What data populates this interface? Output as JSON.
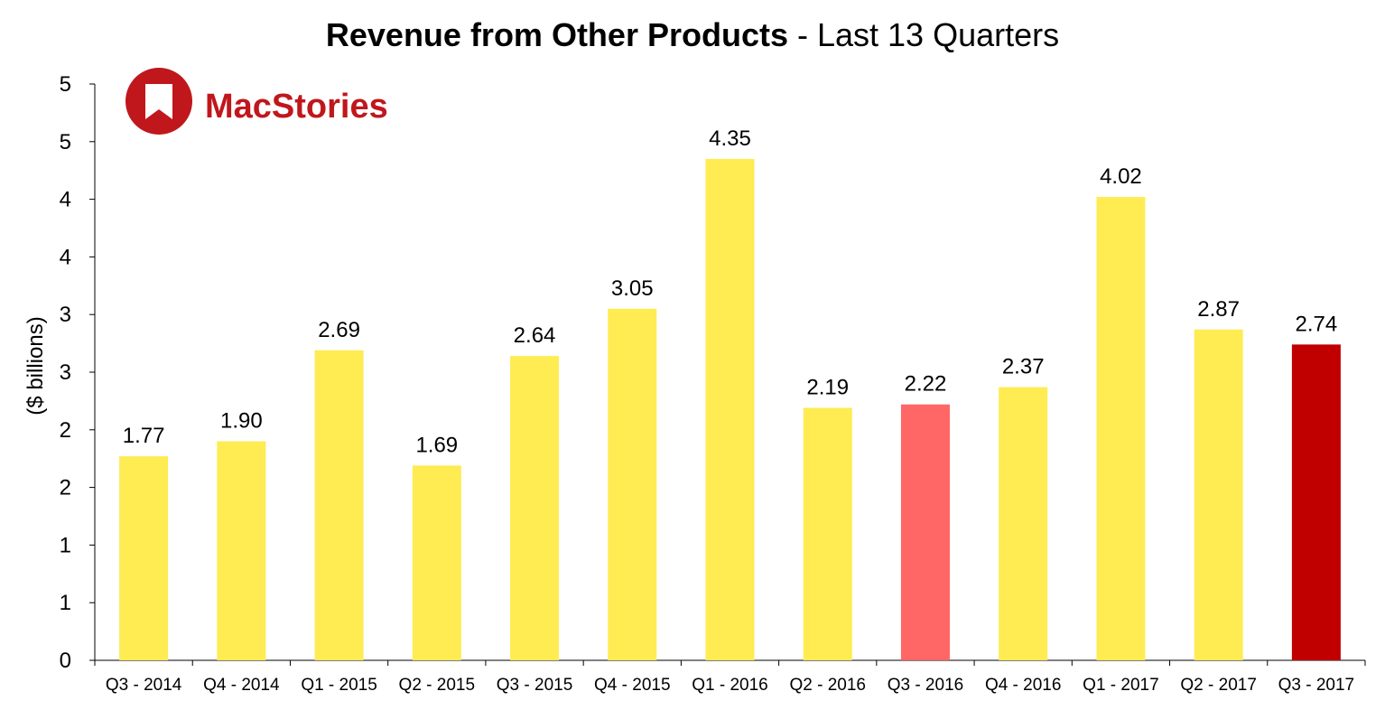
{
  "chart_data": {
    "type": "bar",
    "title_bold": "Revenue from Other Products",
    "title_rest": " - Last 13 Quarters",
    "ylabel": "($ billions)",
    "xlabel": "",
    "ylim": [
      0,
      5
    ],
    "yticks": [
      0,
      0.5,
      1,
      1.5,
      2,
      2.5,
      3,
      3.5,
      4,
      4.5,
      5
    ],
    "ytick_labels": [
      "0",
      "1",
      "1",
      "2",
      "2",
      "3",
      "3",
      "4",
      "4",
      "5",
      "5"
    ],
    "categories": [
      "Q3 - 2014",
      "Q4 - 2014",
      "Q1 - 2015",
      "Q2 - 2015",
      "Q3 - 2015",
      "Q4 - 2015",
      "Q1 - 2016",
      "Q2 - 2016",
      "Q3 - 2016",
      "Q4 - 2016",
      "Q1 - 2017",
      "Q2 - 2017",
      "Q3 - 2017"
    ],
    "values": [
      1.77,
      1.9,
      2.69,
      1.69,
      2.64,
      3.05,
      4.35,
      2.19,
      2.22,
      2.37,
      4.02,
      2.87,
      2.74
    ],
    "value_labels": [
      "1.77",
      "1.90",
      "2.69",
      "1.69",
      "2.64",
      "3.05",
      "4.35",
      "2.19",
      "2.22",
      "2.37",
      "4.02",
      "2.87",
      "2.74"
    ],
    "bar_colors": [
      "#FFEB52",
      "#FFEB52",
      "#FFEB52",
      "#FFEB52",
      "#FFEB52",
      "#FFEB52",
      "#FFEB52",
      "#FFEB52",
      "#FF6666",
      "#FFEB52",
      "#FFEB52",
      "#FFEB52",
      "#C00000"
    ],
    "grid": false,
    "legend": "none"
  },
  "logo": {
    "text": "MacStories",
    "color": "#C0171C",
    "icon": "bookmark-icon"
  }
}
